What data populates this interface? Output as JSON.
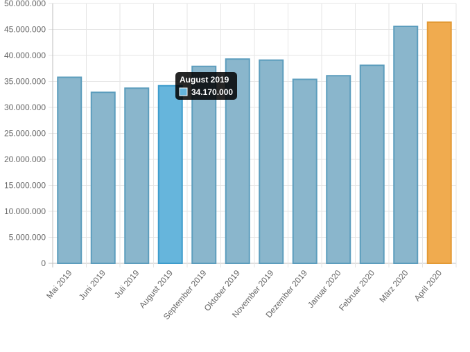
{
  "chart_data": {
    "type": "bar",
    "categories": [
      "Mai 2019",
      "Juni 2019",
      "Juli 2019",
      "August 2019",
      "September 2019",
      "Oktober 2019",
      "November 2019",
      "Dezember 2019",
      "Januar 2020",
      "Februar 2020",
      "März 2020",
      "April 2020"
    ],
    "values": [
      35800000,
      32900000,
      33700000,
      34170000,
      37900000,
      39300000,
      39100000,
      35400000,
      36100000,
      38100000,
      45600000,
      46400000
    ],
    "ylim": [
      0,
      50000000
    ],
    "y_ticks": [
      "0",
      "5.000.000",
      "10.000.000",
      "15.000.000",
      "20.000.000",
      "25.000.000",
      "30.000.000",
      "35.000.000",
      "40.000.000",
      "45.000.000",
      "50.000.000"
    ],
    "grid": true,
    "highlight_index": 3,
    "accent_index": 11,
    "colors": {
      "bar_fill": "#8ab6cc",
      "bar_stroke": "#5c9dbd",
      "highlight_fill": "#66b5dc",
      "highlight_stroke": "#3d9ccc",
      "accent_fill": "#f0ab4f",
      "accent_stroke": "#e39a35"
    },
    "tooltip": {
      "title": "August 2019",
      "value": "34.170.000",
      "swatch_color": "#66b5dc"
    }
  }
}
